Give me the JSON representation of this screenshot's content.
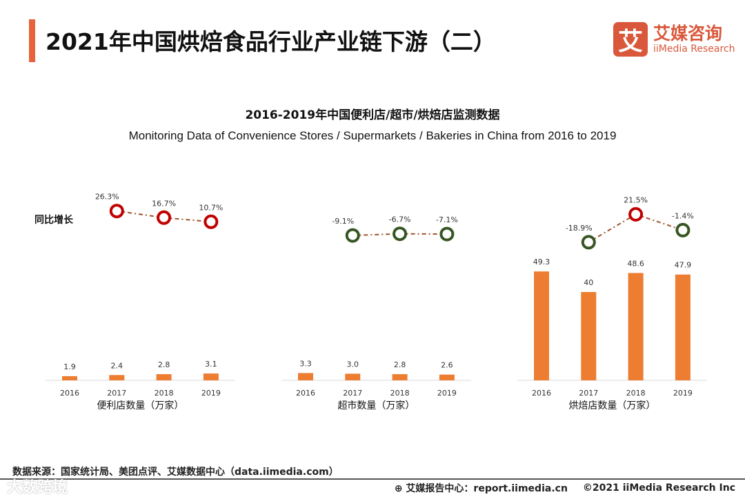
{
  "header": {
    "title": "2021年中国烘焙食品行业产业链下游（二）",
    "logo_mark": "艾",
    "logo_cn": "艾媒咨询",
    "logo_en": "iiMedia Research"
  },
  "chart_data": {
    "type": "bar",
    "title": "2016-2019年中国便利店/超市/烘焙店监测数据",
    "subtitle": "Monitoring Data of Convenience Stores / Supermarkets / Bakeries in China from 2016 to 2019",
    "growth_label": "同比增长",
    "colors": {
      "bar": "#ed7d31",
      "positive": "#c00000",
      "negative": "#375623",
      "line": "#a0522d"
    },
    "groups": [
      {
        "name": "便利店数量（万家）",
        "categories": [
          "2016",
          "2017",
          "2018",
          "2019"
        ],
        "values": [
          1.9,
          2.4,
          2.8,
          3.1
        ],
        "value_labels": [
          "1.9",
          "2.4",
          "2.8",
          "3.1"
        ],
        "growth": [
          null,
          26.3,
          16.7,
          10.7
        ],
        "growth_labels": [
          "",
          "26.3%",
          "16.7%",
          "10.7%"
        ]
      },
      {
        "name": "超市数量（万家）",
        "categories": [
          "2016",
          "2017",
          "2018",
          "2019"
        ],
        "values": [
          3.3,
          3.0,
          2.8,
          2.6
        ],
        "value_labels": [
          "3.3",
          "3.0",
          "2.8",
          "2.6"
        ],
        "growth": [
          null,
          -9.1,
          -6.7,
          -7.1
        ],
        "growth_labels": [
          "",
          "-9.1%",
          "-6.7%",
          "-7.1%"
        ]
      },
      {
        "name": "烘焙店数量（万家）",
        "categories": [
          "2016",
          "2017",
          "2018",
          "2019"
        ],
        "values": [
          49.3,
          40,
          48.6,
          47.9
        ],
        "value_labels": [
          "49.3",
          "40",
          "48.6",
          "47.9"
        ],
        "growth": [
          null,
          -18.9,
          21.5,
          -1.4
        ],
        "growth_labels": [
          "",
          "-18.9%",
          "21.5%",
          "-1.4%"
        ]
      }
    ]
  },
  "footer": {
    "source": "数据来源：国家统计局、美团点评、艾媒数据中心（data.iimedia.com）",
    "report": "艾媒报告中心：report.iimedia.cn",
    "copyright": "©2021  iiMedia Research  Inc",
    "watermark": "大数跨境"
  }
}
